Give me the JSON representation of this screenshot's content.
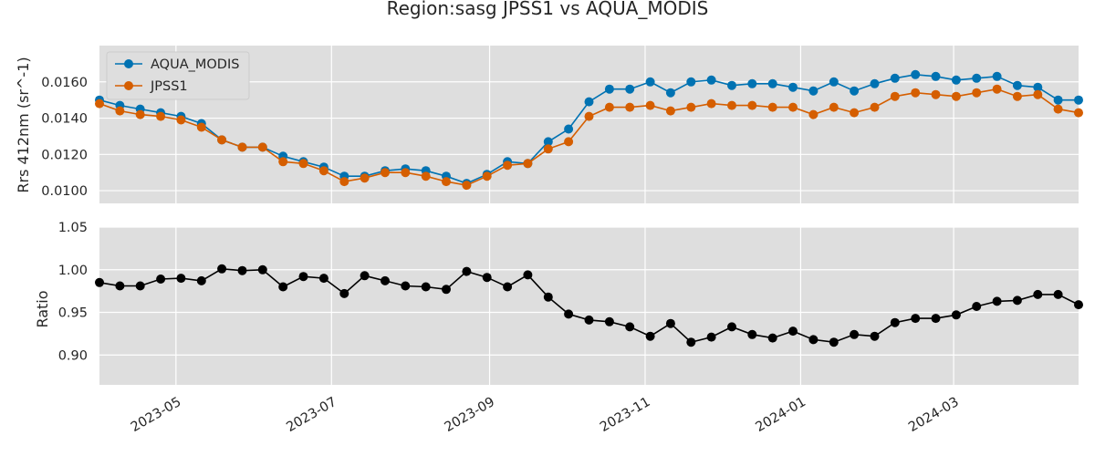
{
  "title": "Region:sasg JPSS1 vs AQUA_MODIS",
  "colors": {
    "aqua": "#0072b2",
    "jpss": "#d55e00",
    "ratio": "#000000",
    "panel_bg": "#dedede",
    "grid": "#ffffff"
  },
  "chart_data": [
    {
      "type": "line",
      "ylabel": "Rrs 412nm (sr^-1)",
      "ylim": [
        0.0093,
        0.018
      ],
      "yticks": [
        0.01,
        0.012,
        0.014,
        0.016
      ],
      "ytick_labels": [
        "0.0100",
        "0.0120",
        "0.0140",
        "0.0160"
      ],
      "grid": true,
      "legend": "top-left",
      "x": [
        "2023-04-01",
        "2023-04-09",
        "2023-04-17",
        "2023-04-25",
        "2023-05-03",
        "2023-05-11",
        "2023-05-19",
        "2023-05-27",
        "2023-06-04",
        "2023-06-12",
        "2023-06-20",
        "2023-06-28",
        "2023-07-06",
        "2023-07-14",
        "2023-07-22",
        "2023-07-30",
        "2023-08-07",
        "2023-08-15",
        "2023-08-23",
        "2023-08-31",
        "2023-09-08",
        "2023-09-16",
        "2023-09-24",
        "2023-10-02",
        "2023-10-10",
        "2023-10-18",
        "2023-10-26",
        "2023-11-03",
        "2023-11-11",
        "2023-11-19",
        "2023-11-27",
        "2023-12-05",
        "2023-12-13",
        "2023-12-21",
        "2023-12-29",
        "2024-01-06",
        "2024-01-14",
        "2024-01-22",
        "2024-01-30",
        "2024-02-07",
        "2024-02-15",
        "2024-02-23",
        "2024-03-02",
        "2024-03-10",
        "2024-03-18",
        "2024-03-26",
        "2024-04-03",
        "2024-04-11",
        "2024-04-19"
      ],
      "series": [
        {
          "name": "AQUA_MODIS",
          "color": "#0072b2",
          "values": [
            0.015,
            0.0147,
            0.0145,
            0.0143,
            0.0141,
            0.0137,
            0.0128,
            0.0124,
            0.0124,
            0.0119,
            0.0116,
            0.0113,
            0.0108,
            0.0108,
            0.0111,
            0.0112,
            0.0111,
            0.0108,
            0.0104,
            0.0109,
            0.0116,
            0.0115,
            0.0127,
            0.0134,
            0.0149,
            0.0156,
            0.0156,
            0.016,
            0.0154,
            0.016,
            0.0161,
            0.0158,
            0.0159,
            0.0159,
            0.0157,
            0.0155,
            0.016,
            0.0155,
            0.0159,
            0.0162,
            0.0164,
            0.0163,
            0.0161,
            0.0162,
            0.0163,
            0.0158,
            0.0157,
            0.015,
            0.015
          ]
        },
        {
          "name": "JPSS1",
          "color": "#d55e00",
          "values": [
            0.0148,
            0.0144,
            0.0142,
            0.0141,
            0.0139,
            0.0135,
            0.0128,
            0.0124,
            0.0124,
            0.0116,
            0.0115,
            0.0111,
            0.0105,
            0.0107,
            0.011,
            0.011,
            0.0108,
            0.0105,
            0.0103,
            0.0108,
            0.0114,
            0.0115,
            0.0123,
            0.0127,
            0.0141,
            0.0146,
            0.0146,
            0.0147,
            0.0144,
            0.0146,
            0.0148,
            0.0147,
            0.0147,
            0.0146,
            0.0146,
            0.0142,
            0.0146,
            0.0143,
            0.0146,
            0.0152,
            0.0154,
            0.0153,
            0.0152,
            0.0154,
            0.0156,
            0.0152,
            0.0153,
            0.0145,
            0.0143
          ]
        }
      ]
    },
    {
      "type": "line",
      "ylabel": "Ratio",
      "ylim": [
        0.865,
        1.05
      ],
      "yticks": [
        0.9,
        0.95,
        1.0,
        1.05
      ],
      "ytick_labels": [
        "0.90",
        "0.95",
        "1.00",
        "1.05"
      ],
      "grid": true,
      "x": [
        "2023-04-01",
        "2023-04-09",
        "2023-04-17",
        "2023-04-25",
        "2023-05-03",
        "2023-05-11",
        "2023-05-19",
        "2023-05-27",
        "2023-06-04",
        "2023-06-12",
        "2023-06-20",
        "2023-06-28",
        "2023-07-06",
        "2023-07-14",
        "2023-07-22",
        "2023-07-30",
        "2023-08-07",
        "2023-08-15",
        "2023-08-23",
        "2023-08-31",
        "2023-09-08",
        "2023-09-16",
        "2023-09-24",
        "2023-10-02",
        "2023-10-10",
        "2023-10-18",
        "2023-10-26",
        "2023-11-03",
        "2023-11-11",
        "2023-11-19",
        "2023-11-27",
        "2023-12-05",
        "2023-12-13",
        "2023-12-21",
        "2023-12-29",
        "2024-01-06",
        "2024-01-14",
        "2024-01-22",
        "2024-01-30",
        "2024-02-07",
        "2024-02-15",
        "2024-02-23",
        "2024-03-02",
        "2024-03-10",
        "2024-03-18",
        "2024-03-26",
        "2024-04-03",
        "2024-04-11",
        "2024-04-19"
      ],
      "series": [
        {
          "color": "#000000",
          "values": [
            0.985,
            0.981,
            0.981,
            0.989,
            0.99,
            0.987,
            1.001,
            0.999,
            1.0,
            0.98,
            0.992,
            0.99,
            0.972,
            0.993,
            0.987,
            0.981,
            0.98,
            0.977,
            0.998,
            0.991,
            0.98,
            0.994,
            0.968,
            0.948,
            0.941,
            0.939,
            0.933,
            0.922,
            0.937,
            0.915,
            0.921,
            0.933,
            0.924,
            0.92,
            0.928,
            0.918,
            0.915,
            0.924,
            0.922,
            0.938,
            0.943,
            0.943,
            0.947,
            0.957,
            0.963,
            0.964,
            0.971,
            0.971,
            0.959
          ]
        }
      ]
    }
  ],
  "x_axis": {
    "range": [
      "2023-04-01",
      "2024-04-19"
    ],
    "ticks": [
      "2023-05-01",
      "2023-07-01",
      "2023-09-01",
      "2023-11-01",
      "2024-01-01",
      "2024-03-01"
    ],
    "tick_labels": [
      "2023-05",
      "2023-07",
      "2023-09",
      "2023-11",
      "2024-01",
      "2024-03"
    ]
  }
}
